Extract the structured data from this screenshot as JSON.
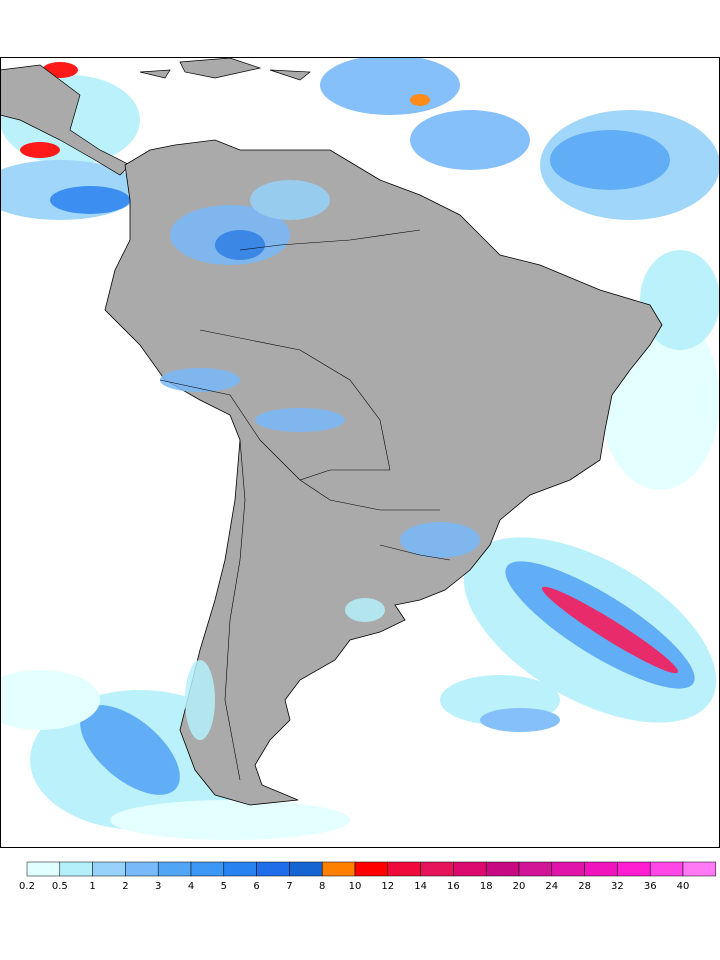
{
  "colorbar": {
    "ticks": [
      0.2,
      0.5,
      1,
      2,
      3,
      4,
      5,
      6,
      7,
      8,
      10,
      12,
      14,
      16,
      18,
      20,
      24,
      28,
      32,
      36,
      40
    ],
    "colors": [
      "#e1ffff",
      "#b4f0fa",
      "#96d2fa",
      "#78b9fa",
      "#50a5f5",
      "#3c97f5",
      "#2882f0",
      "#1e6eeb",
      "#1464d2",
      "#ff7f00",
      "#ff0000",
      "#f00a3c",
      "#e6145a",
      "#dc0a6e",
      "#c80a82",
      "#d21496",
      "#e114aa",
      "#f014be",
      "#ff1ed2",
      "#ff46e6",
      "#ff78f5"
    ]
  }
}
